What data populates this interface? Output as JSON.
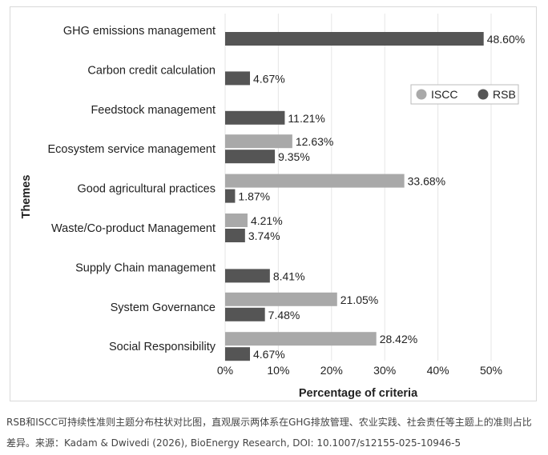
{
  "chart_data": {
    "type": "bar",
    "orientation": "horizontal",
    "categories": [
      "GHG emissions management",
      "Carbon credit calculation",
      "Feedstock management",
      "Ecosystem service management",
      "Good agricultural practices",
      "Waste/Co-product Management",
      "Supply Chain management",
      "System Governance",
      "Social Responsibility"
    ],
    "series": [
      {
        "name": "ISCC",
        "color": "#a9a9a9",
        "values": [
          null,
          null,
          null,
          12.63,
          33.68,
          4.21,
          null,
          21.05,
          28.42
        ]
      },
      {
        "name": "RSB",
        "color": "#555555",
        "values": [
          48.6,
          4.67,
          11.21,
          9.35,
          1.87,
          3.74,
          8.41,
          7.48,
          4.67
        ]
      }
    ],
    "data_labels": [
      {
        "iscc": "",
        "rsb": "48.60%"
      },
      {
        "iscc": "",
        "rsb": "4.67%"
      },
      {
        "iscc": "",
        "rsb": "11.21%"
      },
      {
        "iscc": "12.63%",
        "rsb": "9.35%"
      },
      {
        "iscc": "33.68%",
        "rsb": "1.87%"
      },
      {
        "iscc": "4.21%",
        "rsb": "3.74%"
      },
      {
        "iscc": "",
        "rsb": "8.41%"
      },
      {
        "iscc": "21.05%",
        "rsb": "7.48%"
      },
      {
        "iscc": "28.42%",
        "rsb": "4.67%"
      }
    ],
    "xlabel": "Percentage of criteria",
    "ylabel": "Themes",
    "xlim": [
      0,
      50
    ],
    "xticks": [
      "0%",
      "10%",
      "20%",
      "30%",
      "40%",
      "50%"
    ],
    "grid": "vertical",
    "legend": "upper-right",
    "legend_entries": [
      "ISCC",
      "RSB"
    ]
  },
  "caption": {
    "line1": "RSB和ISCC可持续性准则主题分布柱状对比图，直观展示两体系在GHG排放管理、农业实践、社会责任等主题上的准则占比",
    "line2": "差异。来源：Kadam & Dwivedi (2026), BioEnergy Research, DOI: 10.1007/s12155-025-10946-5"
  }
}
